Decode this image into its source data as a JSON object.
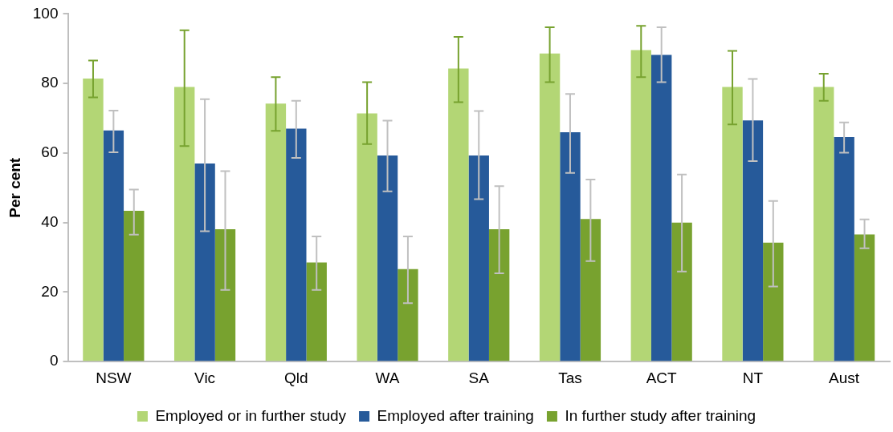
{
  "chart_data": {
    "type": "bar",
    "ylabel": "Per cent",
    "categories": [
      "NSW",
      "Vic",
      "Qld",
      "WA",
      "SA",
      "Tas",
      "ACT",
      "NT",
      "Aust"
    ],
    "series": [
      {
        "name": "Employed or in further study",
        "color": "#b3d675",
        "values": [
          81.4,
          79,
          74.2,
          71.4,
          84.3,
          88.6,
          89.6,
          79,
          79
        ],
        "errors": [
          [
            76,
            86.6
          ],
          [
            62,
            95.3
          ],
          [
            66.4,
            81.8
          ],
          [
            62.6,
            80.4
          ],
          [
            74.6,
            93.4
          ],
          [
            80.4,
            96.2
          ],
          [
            81.8,
            96.6
          ],
          [
            68.2,
            89.4
          ],
          [
            75,
            82.8
          ]
        ]
      },
      {
        "name": "Employed after training",
        "color": "#265a9a",
        "values": [
          66.5,
          57,
          67,
          59.3,
          59.3,
          66,
          88.2,
          69.4,
          64.6
        ],
        "errors": [
          [
            60.2,
            72.2
          ],
          [
            37.5,
            75.5
          ],
          [
            58.6,
            75
          ],
          [
            49,
            69.3
          ],
          [
            46.7,
            72.1
          ],
          [
            54.3,
            77
          ],
          [
            80.4,
            96.2
          ],
          [
            57.7,
            81.3
          ],
          [
            60.1,
            68.8
          ]
        ]
      },
      {
        "name": "In further study after training",
        "color": "#78a22f",
        "values": [
          43.4,
          38.1,
          28.5,
          26.6,
          38.1,
          41,
          40,
          34.2,
          36.6
        ],
        "errors": [
          [
            36.5,
            49.5
          ],
          [
            20.6,
            54.8
          ],
          [
            20.6,
            36
          ],
          [
            16.8,
            36
          ],
          [
            25.4,
            50.5
          ],
          [
            28.9,
            52.4
          ],
          [
            25.9,
            53.8
          ],
          [
            21.6,
            46.2
          ],
          [
            32.6,
            40.9
          ]
        ]
      }
    ],
    "ylim": [
      0,
      100
    ],
    "yticks": [
      0,
      20,
      40,
      60,
      80,
      100
    ],
    "legend": "bottom"
  }
}
